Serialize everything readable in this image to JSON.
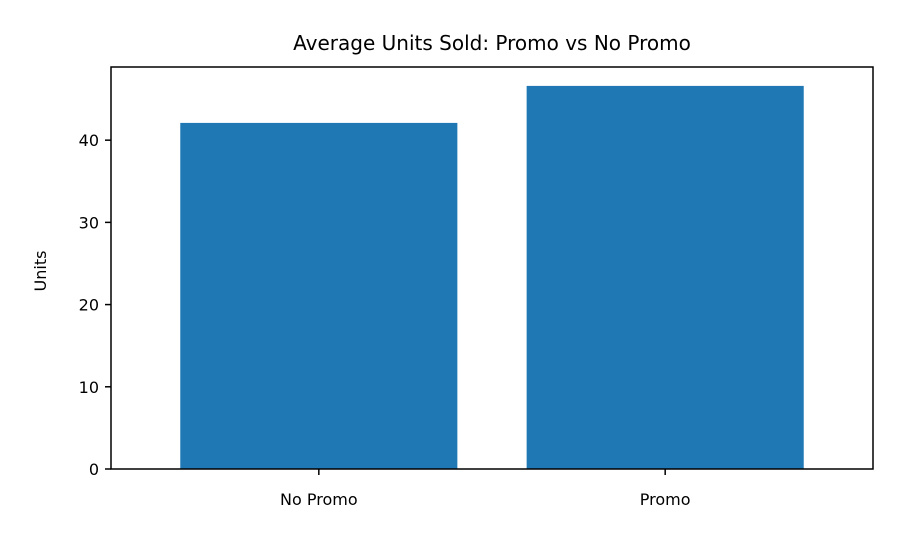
{
  "chart_data": {
    "type": "bar",
    "title": "Average Units Sold: Promo vs No Promo",
    "xlabel": "",
    "ylabel": "Units",
    "categories": [
      "No Promo",
      "Promo"
    ],
    "values": [
      42.1,
      46.6
    ],
    "ylim": [
      0,
      48.9
    ],
    "yticks": [
      0,
      10,
      20,
      30,
      40
    ],
    "grid": false,
    "legend": "none",
    "bar_color": "#1f77b4"
  }
}
